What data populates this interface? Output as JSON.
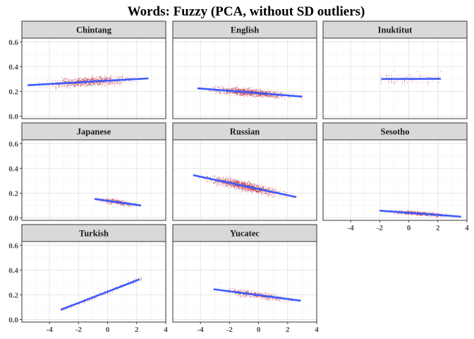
{
  "chart_data": {
    "type": "scatter",
    "title": "Words: Fuzzy (PCA, without SD outliers)",
    "xlim": [
      -5.9,
      4.0
    ],
    "ylim": [
      -0.02,
      0.63
    ],
    "x_ticks": [
      -4,
      -2,
      0,
      2,
      4
    ],
    "y_ticks": [
      0.0,
      0.2,
      0.4,
      0.6
    ],
    "x_tick_labels": [
      "-4",
      "-2",
      "0",
      "2",
      "4"
    ],
    "y_tick_labels": [
      "0.0",
      "0.2",
      "0.4",
      "0.6"
    ],
    "grid": true,
    "layout": {
      "rows": 3,
      "cols": 3
    },
    "point_color": "#b2182b",
    "line_color": "#3b5bff",
    "panels": [
      {
        "name": "Chintang",
        "fit": {
          "x": [
            -5.5,
            2.8
          ],
          "y": [
            0.25,
            0.305
          ]
        },
        "points_x_range": [
          -5.2,
          2.8
        ],
        "points_y_spread": 0.035,
        "density": 900,
        "discrete_x": false
      },
      {
        "name": "English",
        "fit": {
          "x": [
            -4.2,
            3.0
          ],
          "y": [
            0.225,
            0.158
          ]
        },
        "points_x_range": [
          -4.2,
          3.0
        ],
        "points_y_spread": 0.03,
        "density": 1100,
        "discrete_x": false
      },
      {
        "name": "Inuktitut",
        "fit": {
          "x": [
            -1.9,
            2.2
          ],
          "y": [
            0.3,
            0.302
          ]
        },
        "points_x_range": [
          -1.9,
          2.2
        ],
        "points_y_spread": 0.05,
        "density": 120,
        "discrete_x": true
      },
      {
        "name": "Japanese",
        "fit": {
          "x": [
            -0.9,
            2.3
          ],
          "y": [
            0.153,
            0.1
          ]
        },
        "points_x_range": [
          -0.9,
          2.3
        ],
        "points_y_spread": 0.02,
        "density": 320,
        "discrete_x": false
      },
      {
        "name": "Russian",
        "fit": {
          "x": [
            -4.5,
            2.6
          ],
          "y": [
            0.345,
            0.168
          ]
        },
        "points_x_range": [
          -4.5,
          2.6
        ],
        "points_y_spread": 0.035,
        "density": 1300,
        "discrete_x": false
      },
      {
        "name": "Sesotho",
        "fit": {
          "x": [
            -2.0,
            3.6
          ],
          "y": [
            0.058,
            0.01
          ]
        },
        "points_x_range": [
          -2.0,
          3.6
        ],
        "points_y_spread": 0.014,
        "density": 700,
        "discrete_x": false
      },
      {
        "name": "Turkish",
        "fit": {
          "x": [
            -3.2,
            2.2
          ],
          "y": [
            0.08,
            0.325
          ]
        },
        "points_x_range": [
          -3.2,
          2.3
        ],
        "points_y_spread": 0.02,
        "density": 220,
        "discrete_x": true
      },
      {
        "name": "Yucatec",
        "fit": {
          "x": [
            -3.1,
            2.9
          ],
          "y": [
            0.245,
            0.152
          ]
        },
        "points_x_range": [
          -3.1,
          2.9
        ],
        "points_y_spread": 0.025,
        "density": 480,
        "discrete_x": false
      }
    ]
  }
}
